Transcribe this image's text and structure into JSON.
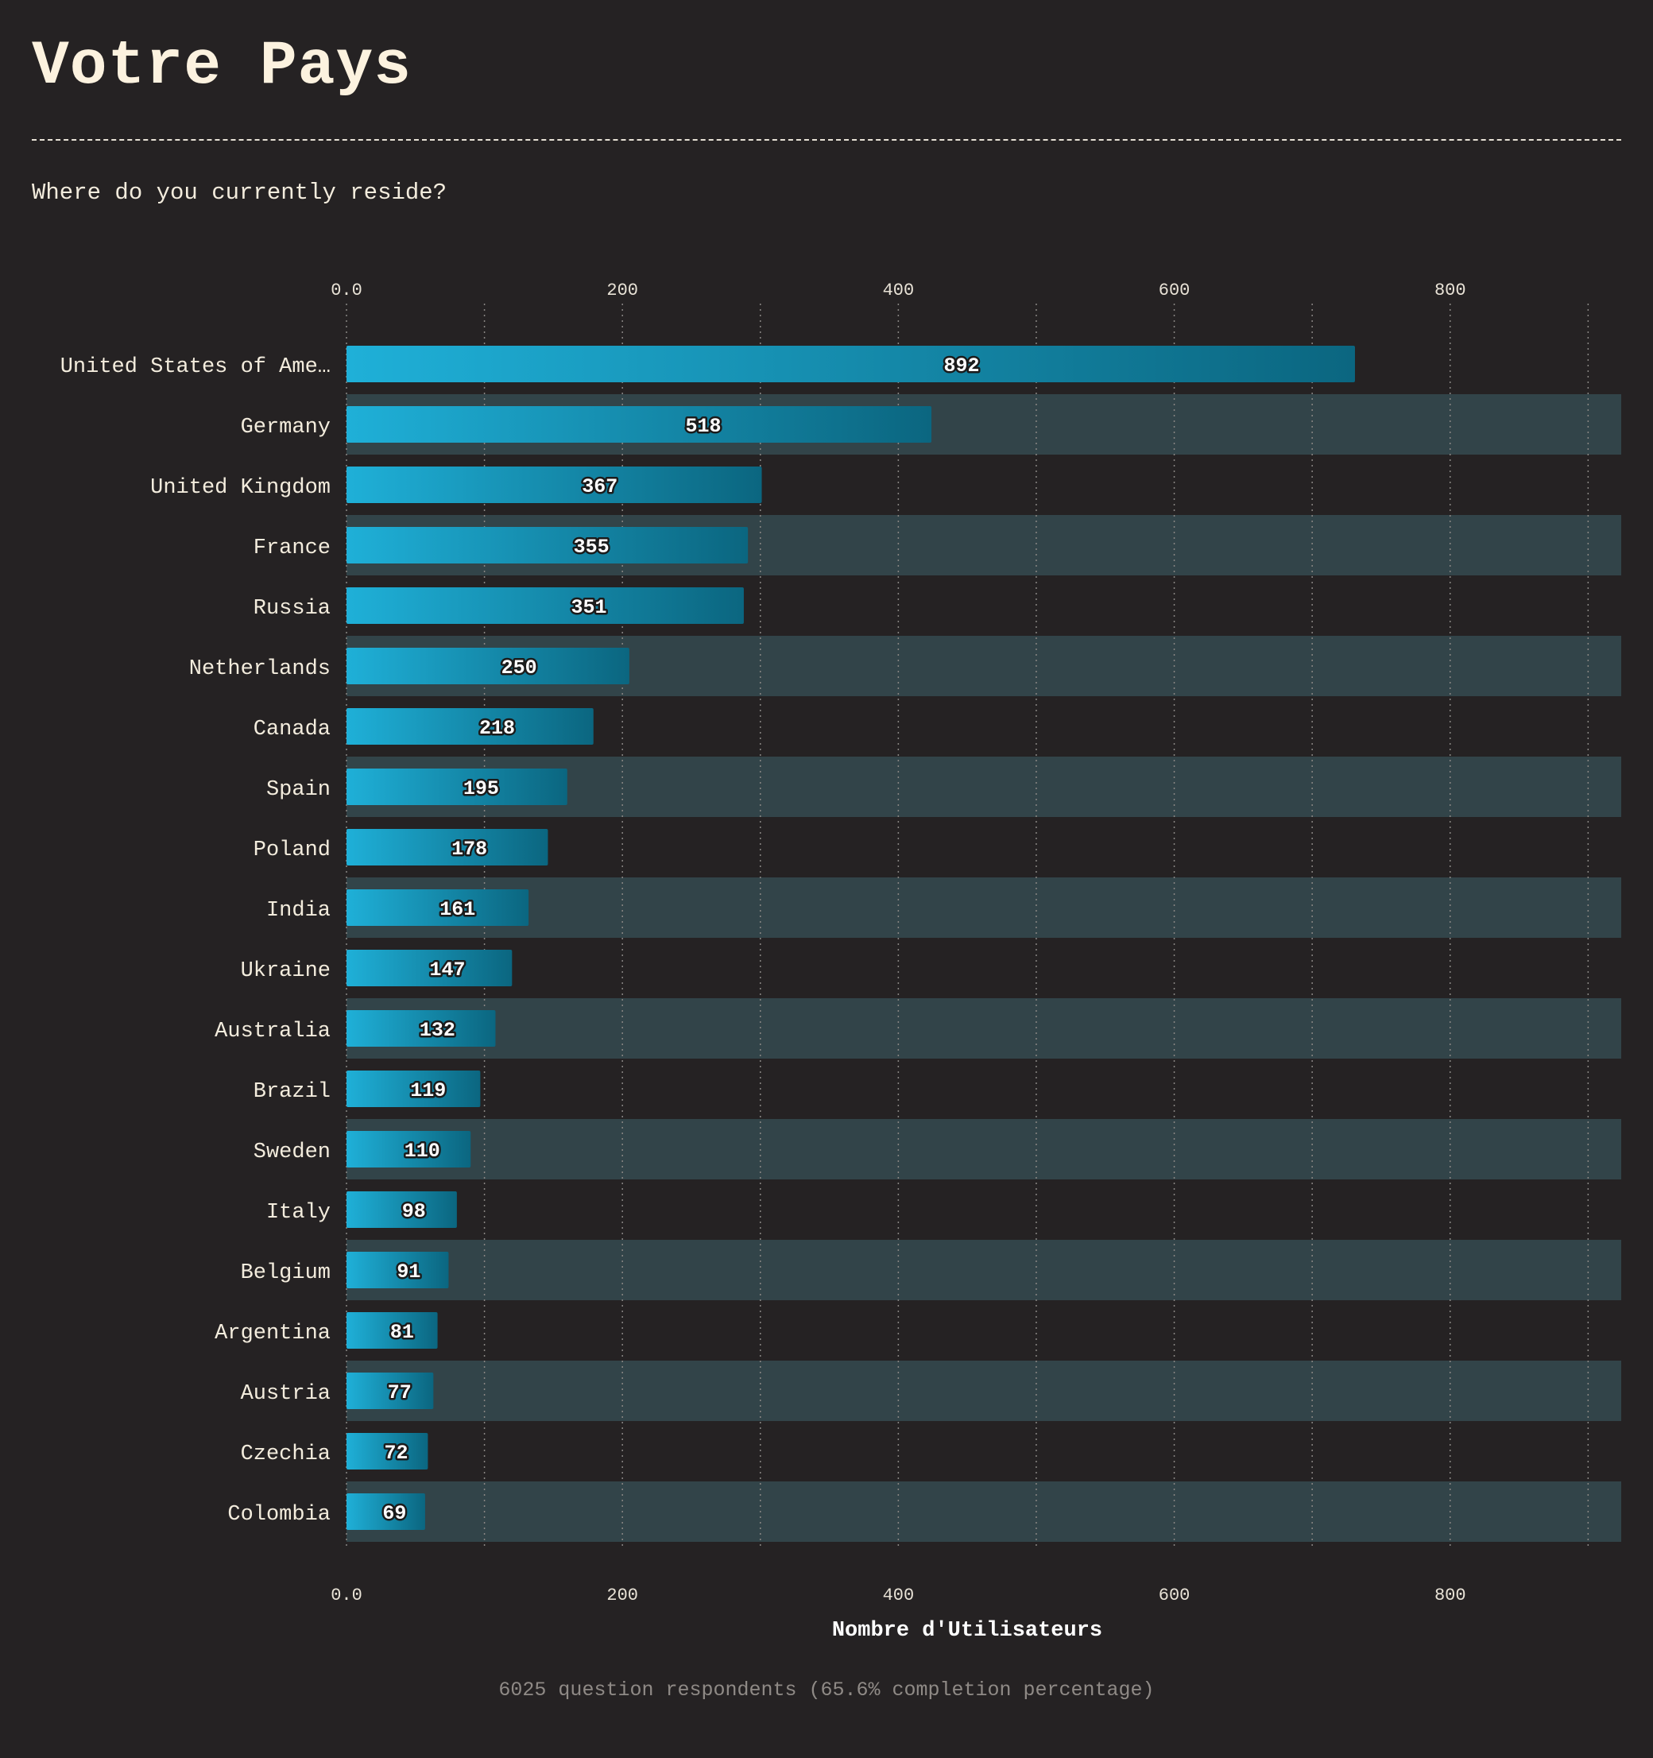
{
  "header": {
    "title": "Votre Pays",
    "subtitle": "Where do you currently reside?"
  },
  "footer": {
    "note": "6025 question respondents (65.6% completion percentage)"
  },
  "colors": {
    "background": "#252223",
    "band": "#324449",
    "bar_start": "#1fb0d8",
    "bar_end": "#0b6680",
    "text": "#f3ecdd"
  },
  "chart_data": {
    "type": "bar",
    "orientation": "horizontal",
    "categories": [
      "United States of Ame…",
      "Germany",
      "United Kingdom",
      "France",
      "Russia",
      "Netherlands",
      "Canada",
      "Spain",
      "Poland",
      "India",
      "Ukraine",
      "Australia",
      "Brazil",
      "Sweden",
      "Italy",
      "Belgium",
      "Argentina",
      "Austria",
      "Czechia",
      "Colombia"
    ],
    "values": [
      892,
      518,
      367,
      355,
      351,
      250,
      218,
      195,
      178,
      161,
      147,
      132,
      119,
      110,
      98,
      91,
      81,
      77,
      72,
      69
    ],
    "bar_lengths": [
      731,
      424,
      301,
      291,
      288,
      205,
      179,
      160,
      146,
      132,
      120,
      108,
      97,
      90,
      80,
      74,
      66,
      63,
      59,
      57
    ],
    "title": "Votre Pays",
    "xlabel": "Nombre d'Utilisateurs",
    "ylabel": "",
    "xlim": [
      0,
      924
    ],
    "xticks": [
      0,
      200,
      400,
      600,
      800
    ],
    "xtick_labels": [
      "0.0",
      "200",
      "400",
      "600",
      "800"
    ],
    "minor_gridlines": [
      100,
      300,
      500,
      700,
      900
    ],
    "grid": true,
    "legend": "none",
    "alternating_bands": true
  }
}
